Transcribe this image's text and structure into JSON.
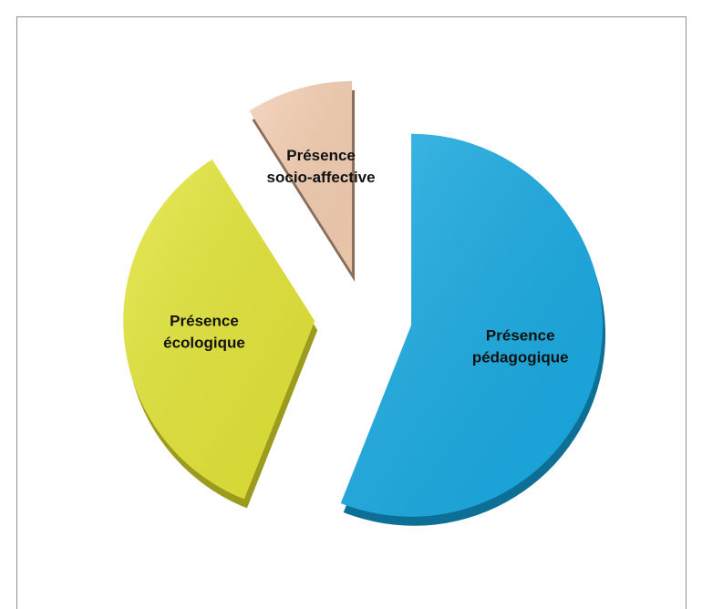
{
  "chart_data": {
    "type": "pie",
    "title": "",
    "slices": [
      {
        "label_lines": [
          "Présence",
          "pédagogique"
        ],
        "value": 56,
        "color": "#19ABE3",
        "shadow": "#0E6F96"
      },
      {
        "label_lines": [
          "Présence",
          "écologique"
        ],
        "value": 35,
        "color": "#E4E638",
        "shadow": "#9B9C1E"
      },
      {
        "label_lines": [
          "Présence",
          "socio-affective"
        ],
        "value": 9,
        "color": "#F5CFB2",
        "shadow": "#8A6E5C"
      }
    ],
    "legend": "none",
    "style": "3d-exploded"
  }
}
